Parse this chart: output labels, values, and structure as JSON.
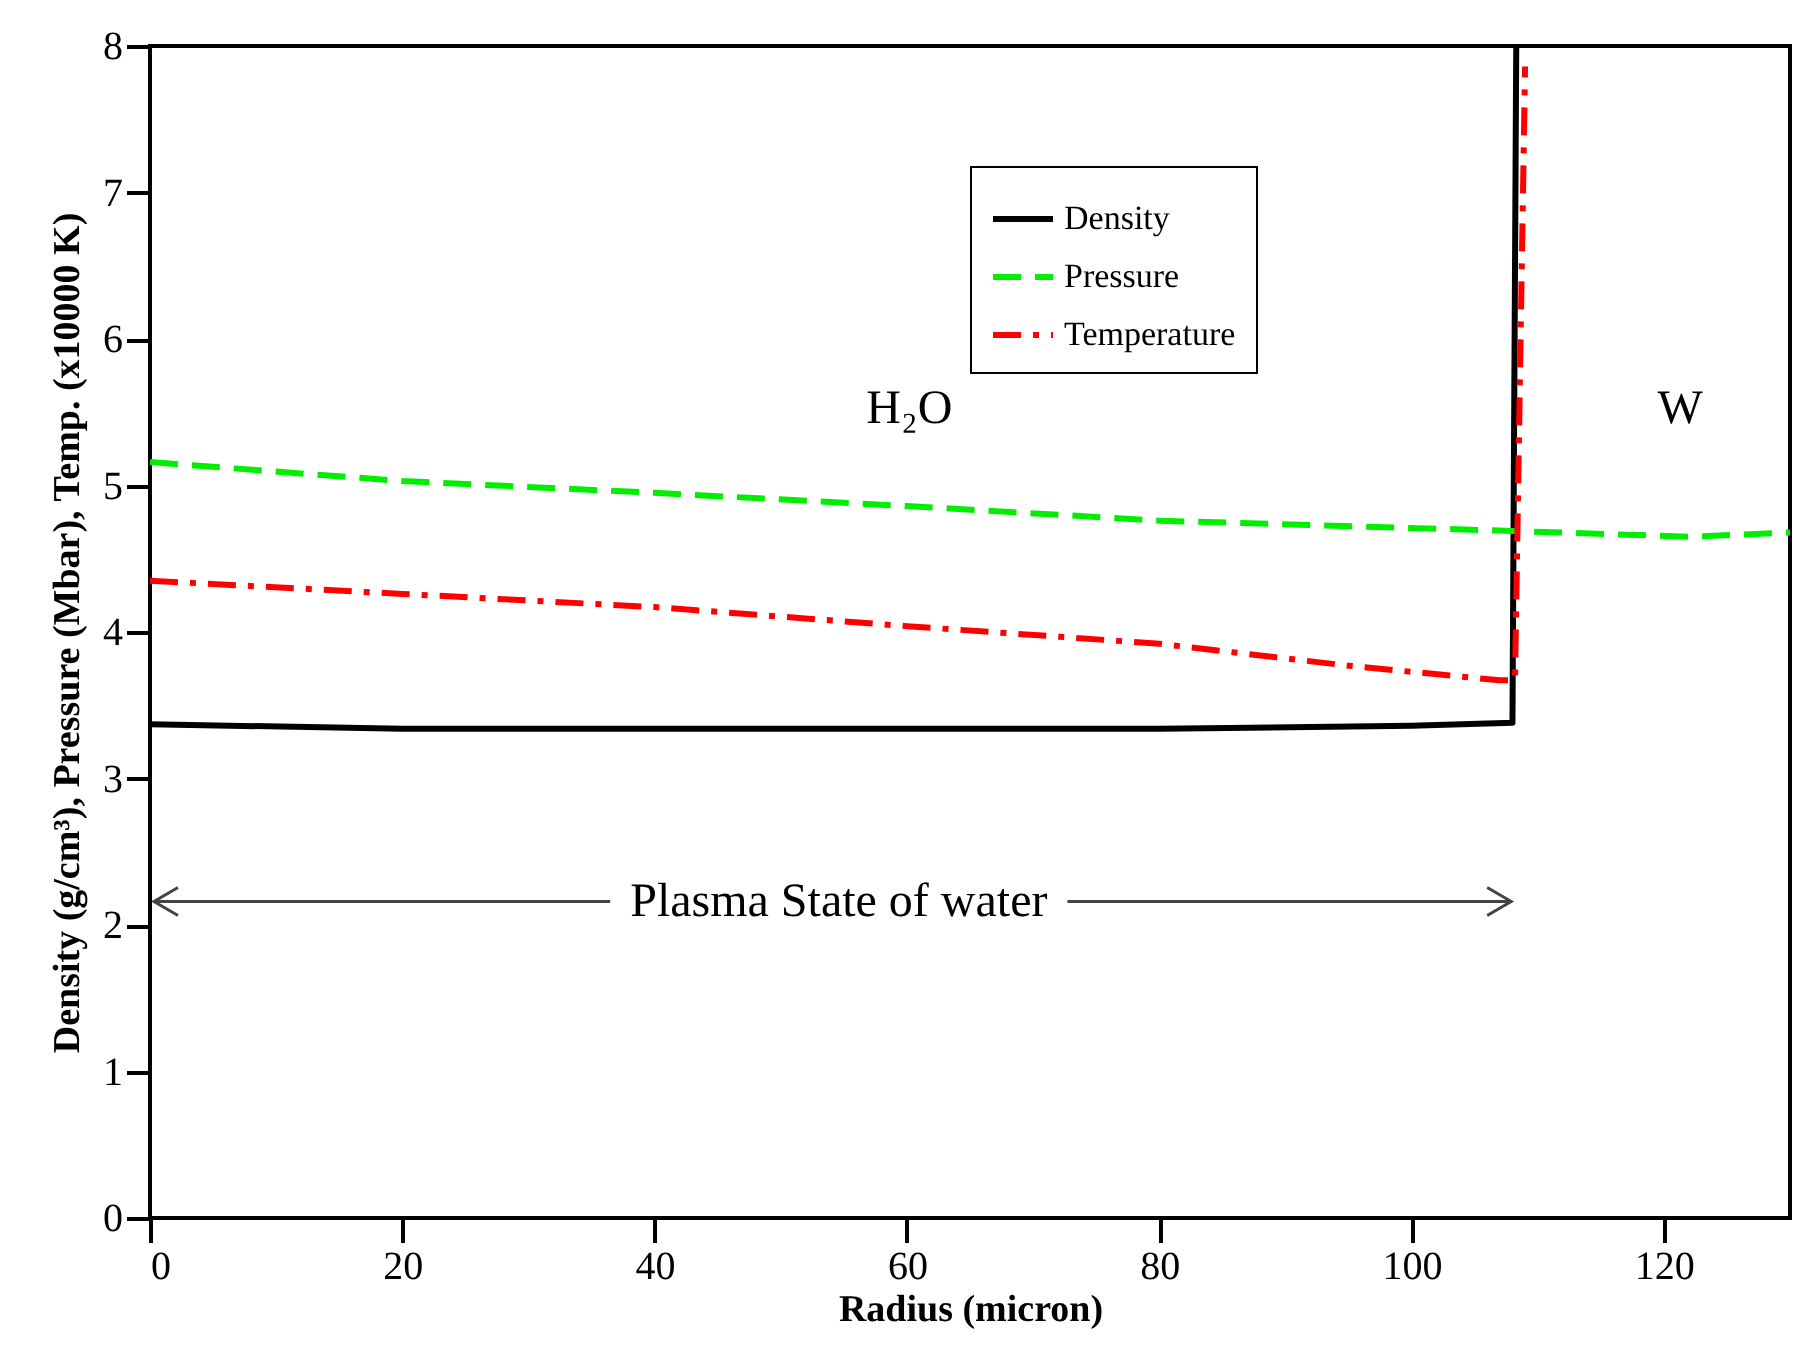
{
  "chart_data": {
    "type": "line",
    "xlabel": "Radius (micron)",
    "ylabel": "Density (g/cm³), Pressure (Mbar), Temp. (x10000 K)",
    "xlim": [
      0,
      130
    ],
    "xticks": [
      0,
      20,
      40,
      60,
      80,
      100,
      120
    ],
    "ylim": [
      0,
      8
    ],
    "yticks": [
      0,
      1,
      2,
      3,
      4,
      5,
      6,
      7,
      8
    ],
    "grid": false,
    "legend": "top right",
    "marker": "none",
    "series": [
      {
        "name": "Density",
        "color": "#000000",
        "line_style": "solid",
        "x": [
          0,
          20,
          40,
          60,
          80,
          100,
          108,
          108.3
        ],
        "values": [
          3.37,
          3.34,
          3.34,
          3.34,
          3.34,
          3.36,
          3.38,
          8
        ]
      },
      {
        "name": "Pressure",
        "color": "#00ee00",
        "line_style": "dashed",
        "x": [
          0,
          20,
          40,
          60,
          80,
          108,
          122,
          130
        ],
        "values": [
          5.16,
          5.03,
          4.95,
          4.86,
          4.76,
          4.69,
          4.65,
          4.68
        ]
      },
      {
        "name": "Temperature",
        "color": "#ff0000",
        "line_style": "dashdot",
        "x": [
          0,
          20,
          40,
          60,
          80,
          95,
          107,
          108.2,
          109
        ],
        "values": [
          4.35,
          4.26,
          4.17,
          4.04,
          3.92,
          3.77,
          3.67,
          3.67,
          7.86
        ]
      }
    ],
    "annotations": [
      "H₂O",
      "W",
      "Plasma State of water"
    ]
  }
}
